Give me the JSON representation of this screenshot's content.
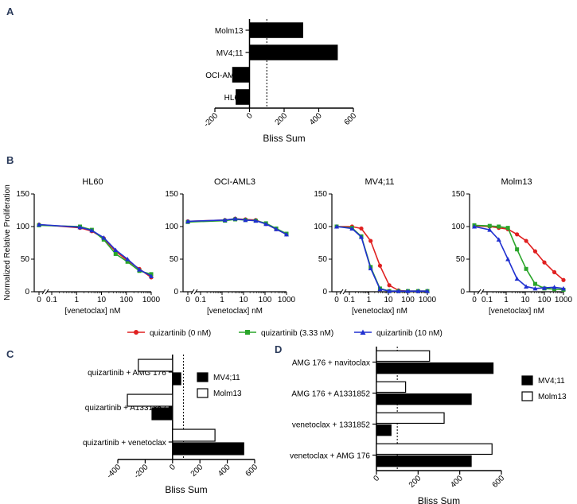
{
  "chart_data": [
    {
      "panel": "A",
      "type": "bar",
      "orientation": "horizontal",
      "categories": [
        "Molm13",
        "MV4;11",
        "OCI-AML3",
        "HL60"
      ],
      "values": [
        310,
        510,
        -100,
        -80
      ],
      "xlabel": "Bliss Sum",
      "xticks": [
        -200,
        0,
        200,
        400,
        600
      ],
      "xlim": [
        -200,
        600
      ],
      "reference_line": 100
    },
    {
      "panel": "B",
      "type": "line",
      "ylabel": "Normalized Relative Proliferation",
      "xlabel": "[venetoclax] nM",
      "xticks": [
        "0",
        "0.1",
        "1",
        "10",
        "100",
        "1000"
      ],
      "yticks": [
        0,
        50,
        100,
        150
      ],
      "ylim": [
        0,
        150
      ],
      "legend": [
        {
          "name": "quizartinib (0 nM)",
          "color": "#e02020",
          "marker": "circle"
        },
        {
          "name": "quizartinib (3.33 nM)",
          "color": "#2aa52a",
          "marker": "square"
        },
        {
          "name": "quizartinib (10 nM)",
          "color": "#2030d0",
          "marker": "triangle"
        }
      ],
      "subplots": [
        {
          "title": "HL60",
          "x": [
            0,
            1.37,
            4.1,
            12.3,
            37,
            111,
            333,
            1000
          ],
          "series": [
            {
              "name": "quizartinib (0 nM)",
              "values": [
                103,
                98,
                93,
                82,
                62,
                48,
                35,
                22
              ]
            },
            {
              "name": "quizartinib (3.33 nM)",
              "values": [
                102,
                100,
                95,
                80,
                58,
                46,
                32,
                27
              ]
            },
            {
              "name": "quizartinib (10 nM)",
              "values": [
                103,
                99,
                94,
                83,
                64,
                50,
                34,
                24
              ]
            }
          ]
        },
        {
          "title": "OCI-AML3",
          "x": [
            0,
            1.37,
            4.1,
            12.3,
            37,
            111,
            333,
            1000
          ],
          "series": [
            {
              "name": "quizartinib (0 nM)",
              "values": [
                108,
                110,
                112,
                111,
                110,
                104,
                96,
                88
              ]
            },
            {
              "name": "quizartinib (3.33 nM)",
              "values": [
                107,
                109,
                111,
                110,
                109,
                105,
                97,
                89
              ]
            },
            {
              "name": "quizartinib (10 nM)",
              "values": [
                108,
                110,
                112,
                110,
                109,
                104,
                96,
                88
              ]
            }
          ]
        },
        {
          "title": "MV4;11",
          "x": [
            0,
            0.137,
            0.41,
            1.23,
            3.7,
            11.1,
            33,
            100,
            333,
            1000
          ],
          "series": [
            {
              "name": "quizartinib (0 nM)",
              "values": [
                100,
                100,
                97,
                78,
                40,
                10,
                2,
                1,
                1,
                1
              ]
            },
            {
              "name": "quizartinib (3.33 nM)",
              "values": [
                100,
                98,
                85,
                38,
                5,
                1,
                1,
                1,
                1,
                1
              ]
            },
            {
              "name": "quizartinib (10 nM)",
              "values": [
                100,
                97,
                84,
                36,
                4,
                1,
                1,
                1,
                1,
                1
              ]
            }
          ]
        },
        {
          "title": "Molm13",
          "x": [
            0,
            0.137,
            0.41,
            1.23,
            3.7,
            11.1,
            33,
            100,
            333,
            1000
          ],
          "series": [
            {
              "name": "quizartinib (0 nM)",
              "values": [
                101,
                100,
                98,
                96,
                88,
                78,
                62,
                45,
                30,
                18
              ]
            },
            {
              "name": "quizartinib (3.33 nM)",
              "values": [
                102,
                101,
                100,
                98,
                65,
                35,
                12,
                5,
                4,
                3
              ]
            },
            {
              "name": "quizartinib (10 nM)",
              "values": [
                100,
                95,
                80,
                50,
                20,
                8,
                5,
                6,
                7,
                5
              ]
            }
          ]
        }
      ]
    },
    {
      "panel": "C",
      "type": "bar",
      "orientation": "horizontal",
      "categories": [
        "quizartinib + AMG 176",
        "quizartinib + A1331852",
        "quizartinib + venetoclax"
      ],
      "series": [
        {
          "name": "MV4;11",
          "fill": "#000000",
          "values": [
            60,
            -150,
            520
          ]
        },
        {
          "name": "Molm13",
          "fill": "#ffffff",
          "values": [
            -250,
            -330,
            310
          ]
        }
      ],
      "xlabel": "Bliss Sum",
      "xticks": [
        -400,
        -200,
        0,
        200,
        400,
        600
      ],
      "xlim": [
        -400,
        600
      ],
      "reference_line": 80
    },
    {
      "panel": "D",
      "type": "bar",
      "orientation": "horizontal",
      "categories": [
        "AMG 176 + navitoclax",
        "AMG 176 + A1331852",
        "venetoclax + 1331852",
        "venetoclax + AMG 176"
      ],
      "series": [
        {
          "name": "MV4;11",
          "fill": "#000000",
          "values": [
            560,
            455,
            70,
            455
          ]
        },
        {
          "name": "Molm13",
          "fill": "#ffffff",
          "values": [
            255,
            140,
            325,
            555
          ]
        }
      ],
      "xlabel": "Bliss Sum",
      "xticks": [
        0,
        200,
        400,
        600
      ],
      "xlim": [
        0,
        600
      ],
      "reference_line": 100
    }
  ]
}
